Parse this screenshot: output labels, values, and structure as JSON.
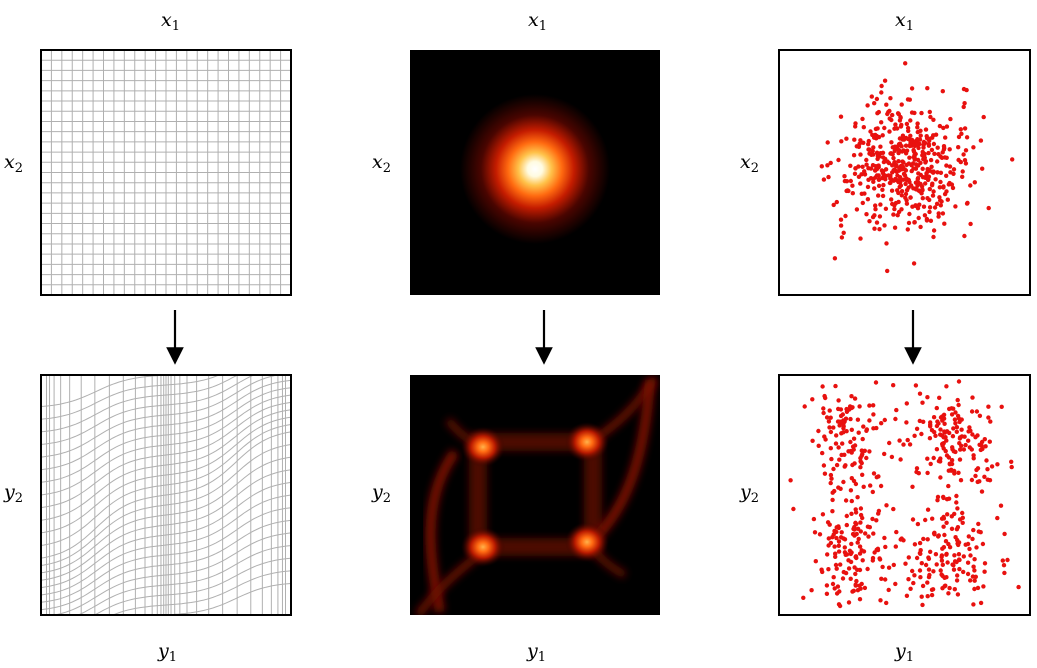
{
  "figure": {
    "colors": {
      "frame": "#000000",
      "grid_line": "#b0b0b0",
      "points": "#e8110f",
      "heatmap_colormap": "hot (black-red-orange-yellow-white)"
    },
    "columns": [
      {
        "id": "grid",
        "top_label": {
          "var": "x",
          "sub": "1"
        },
        "left_label_top": {
          "var": "x",
          "sub": "2"
        },
        "bottom_label": {
          "var": "y",
          "sub": "1"
        },
        "left_label_bottom": {
          "var": "y",
          "sub": "2"
        },
        "top_panel": "uniform square grid",
        "bottom_panel": "warped grid",
        "arrow_icon": "down-arrow-icon"
      },
      {
        "id": "density",
        "top_label": {
          "var": "x",
          "sub": "1"
        },
        "left_label_top": {
          "var": "x",
          "sub": "2"
        },
        "bottom_label": {
          "var": "y",
          "sub": "1"
        },
        "left_label_bottom": {
          "var": "y",
          "sub": "2"
        },
        "top_panel": "single gaussian blob (hot colormap)",
        "bottom_panel": "four-mode density (hot colormap)",
        "arrow_icon": "down-arrow-icon"
      },
      {
        "id": "samples",
        "top_label": {
          "var": "x",
          "sub": "1"
        },
        "left_label_top": {
          "var": "x",
          "sub": "2"
        },
        "bottom_label": {
          "var": "y",
          "sub": "1"
        },
        "left_label_bottom": {
          "var": "y",
          "sub": "2"
        },
        "top_panel": "gaussian sample points",
        "bottom_panel": "transformed sample points (four clusters)",
        "arrow_icon": "down-arrow-icon"
      }
    ]
  }
}
